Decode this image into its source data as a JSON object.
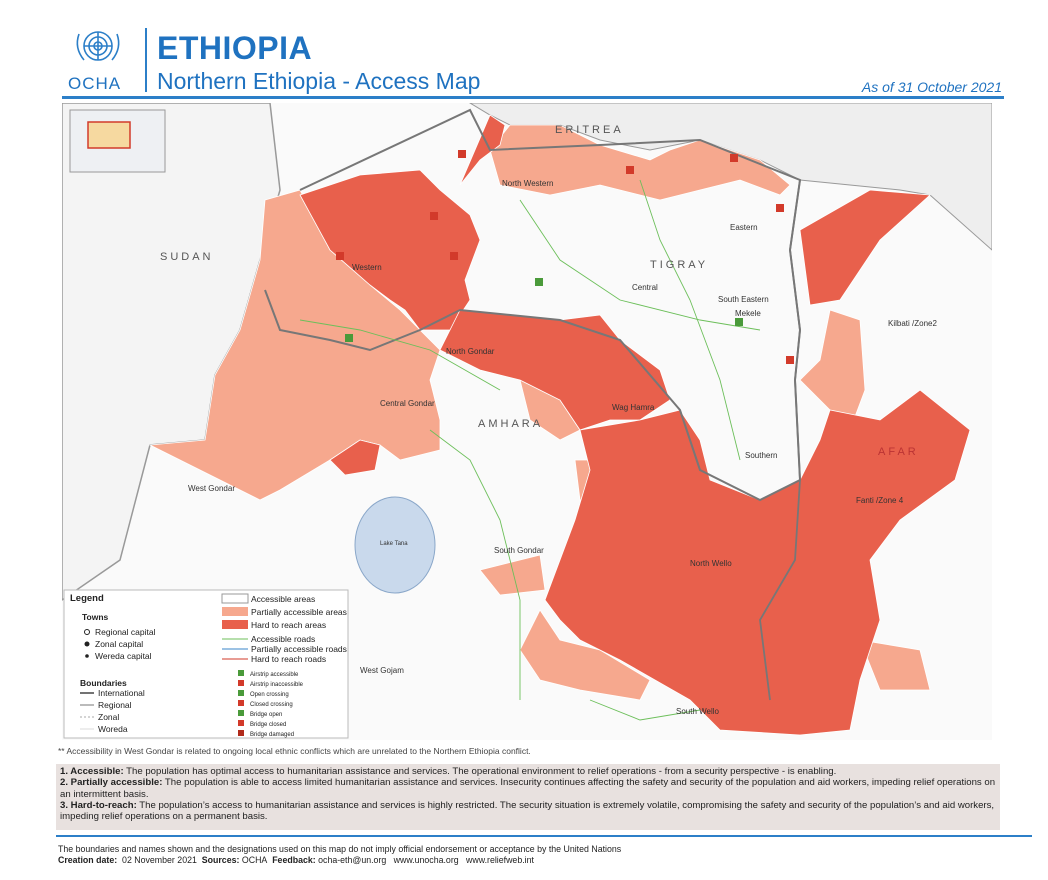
{
  "header": {
    "org": "OCHA",
    "country": "ETHIOPIA",
    "title": "Northern Ethiopia - Access Map",
    "date": "As of 31 October 2021"
  },
  "map": {
    "countries": [
      "ERITREA",
      "SUDAN"
    ],
    "regions": [
      "TIGRAY",
      "AMHARA",
      "AFAR"
    ],
    "zones": [
      "North Western",
      "Western",
      "Central",
      "Eastern",
      "South Eastern",
      "Mekele",
      "Southern",
      "North Gondar",
      "Central Gondar",
      "West Gondar",
      "South Gondar",
      "Wag Hamra",
      "North Wello",
      "South Wello",
      "Fanti /Zone 4",
      "Kilbati /Zone2",
      "West Gojam",
      "Lake Tana"
    ]
  },
  "legend": {
    "title": "Legend",
    "towns": {
      "heading": "Towns",
      "items": [
        "Regional capital",
        "Zonal capital",
        "Wereda capital"
      ]
    },
    "boundaries": {
      "heading": "Boundaries",
      "items": [
        "International",
        "Regional",
        "Zonal",
        "Woreda"
      ]
    },
    "areas": [
      "Accessible areas",
      "Partially accessible areas",
      "Hard to reach areas"
    ],
    "roads": [
      "Accessible roads",
      "Partially accessible roads",
      "Hard to reach roads"
    ],
    "symbols": [
      "Airstrip accessible",
      "Airstrip inaccessible",
      "Open crossing",
      "Closed crossing",
      "Bridge open",
      "Bridge closed",
      "Bridge damaged"
    ]
  },
  "note": "** Accessibility in West Gondar is related to ongoing local ethnic conflicts which are unrelated to the Northern Ethiopia conflict.",
  "definitions": [
    {
      "term": "1. Accessible:",
      "text": "The population has optimal access to humanitarian assistance and services. The operational environment to relief operations - from a security perspective - is enabling."
    },
    {
      "term": "2. Partially accessible:",
      "text": "The population is able to access limited humanitarian assistance and services. Insecurity continues affecting the safety and security of the population and aid workers, impeding relief operations on an intermittent basis."
    },
    {
      "term": "3. Hard-to-reach:",
      "text": "The population’s access to humanitarian assistance and services is highly restricted. The security situation is extremely volatile, compromising the safety and security of the population’s and aid workers, impeding relief operations on a permanent basis."
    }
  ],
  "footer": {
    "disclaimer": "The boundaries and names shown and the designations used on this map do not imply official endorsement or acceptance by the United Nations",
    "creation_label": "Creation date:",
    "creation_date": "02 November 2021",
    "sources_label": "Sources:",
    "sources": "OCHA",
    "feedback_label": "Feedback:",
    "email": "ocha-eth@un.org",
    "links": [
      "www.unocha.org",
      "www.reliefweb.int"
    ]
  }
}
